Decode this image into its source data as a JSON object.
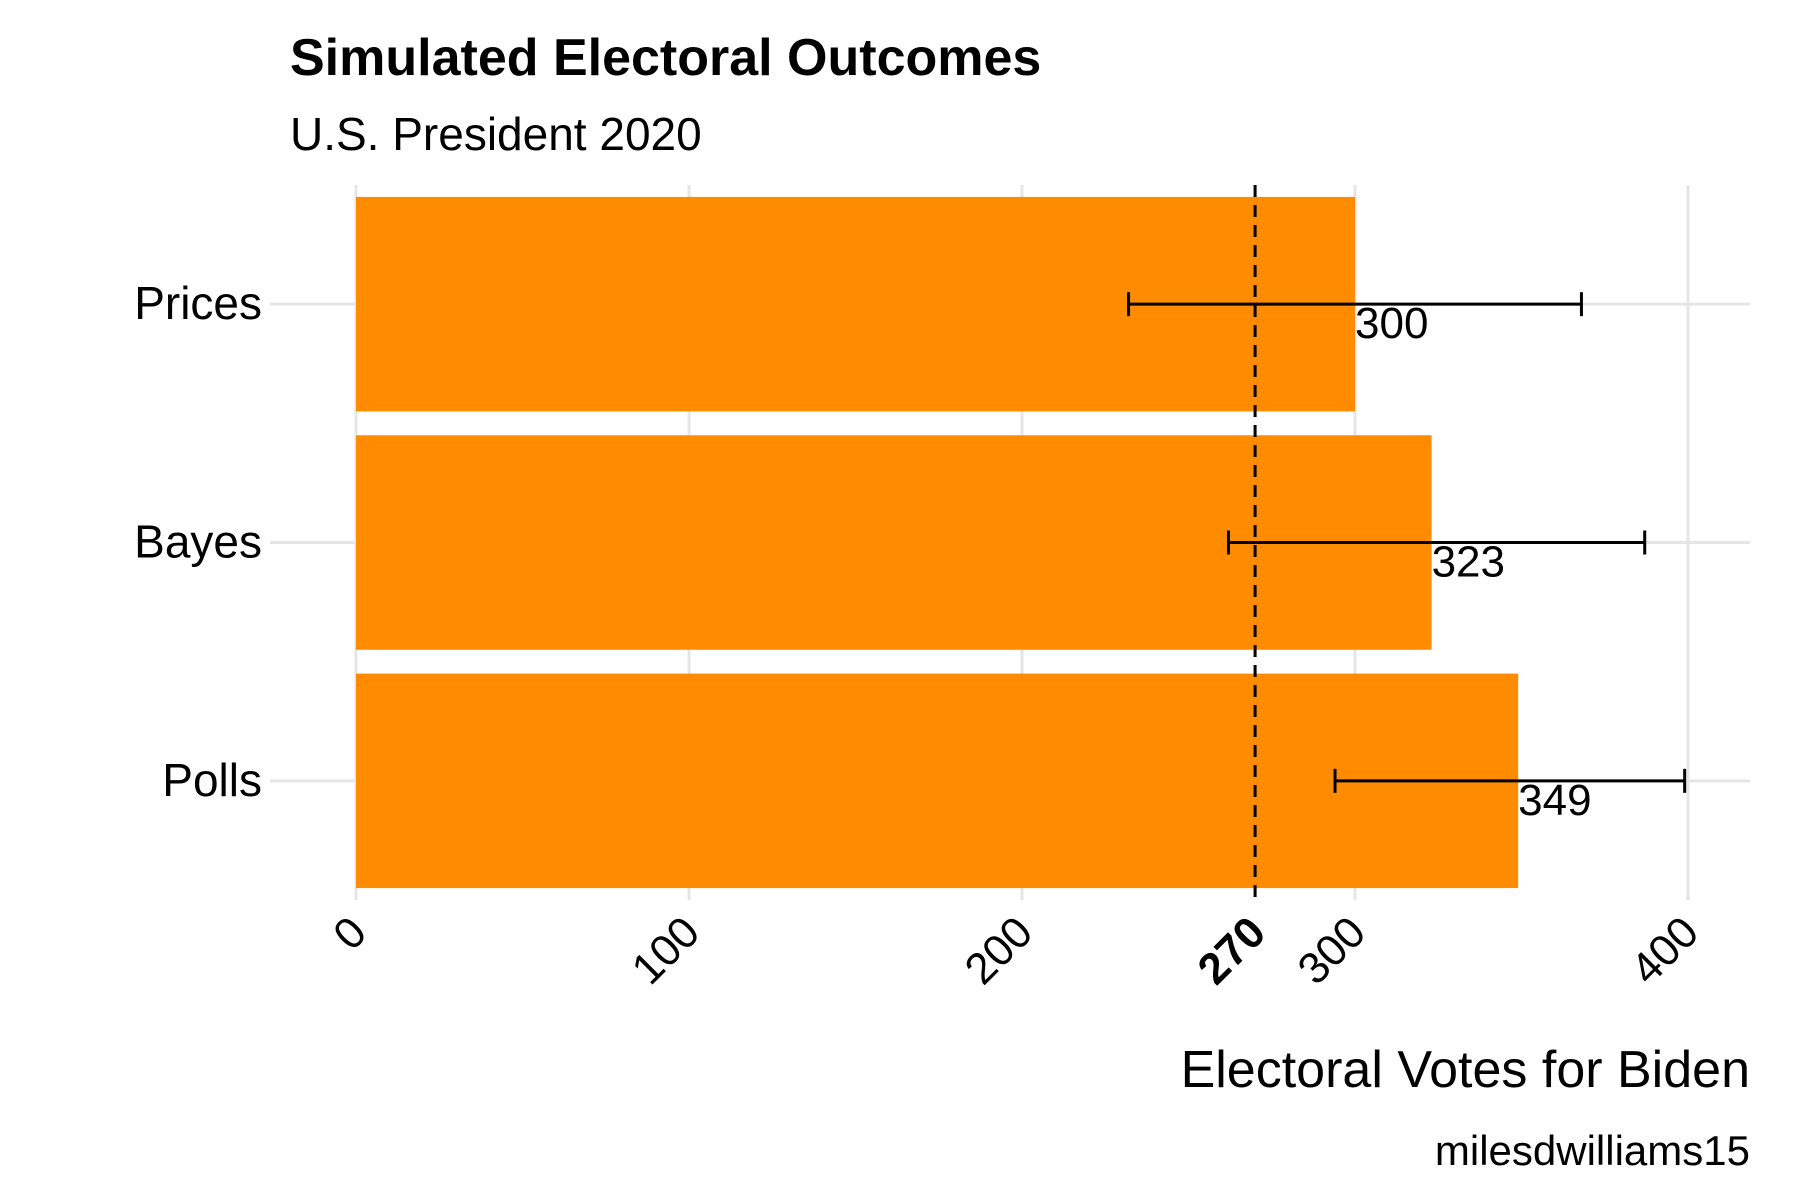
{
  "chart_data": {
    "type": "bar",
    "orientation": "horizontal",
    "title": "Simulated Electoral Outcomes",
    "subtitle": "U.S. President 2020",
    "xlabel": "Electoral Votes for Biden",
    "ylabel": "",
    "caption": "milesdwilliams15",
    "categories": [
      "Prices",
      "Bayes",
      "Polls"
    ],
    "values": [
      300,
      323,
      349
    ],
    "error_low": [
      232,
      262,
      294
    ],
    "error_high": [
      368,
      387,
      399
    ],
    "data_labels": [
      "300",
      "323",
      "349"
    ],
    "xlim": [
      0,
      400
    ],
    "x_ticks": [
      0,
      100,
      200,
      270,
      300,
      400
    ],
    "x_tick_labels": [
      "0",
      "100",
      "200",
      "270",
      "300",
      "400"
    ],
    "highlight_tick": "270",
    "reference_line": {
      "x": 270,
      "style": "dashed"
    },
    "grid": true,
    "legend": "none",
    "colors": {
      "bar": "#ff8c00",
      "grid": "#e5e5e5",
      "text": "#000000",
      "errorbar": "#000000",
      "reference_line": "#000000"
    }
  }
}
